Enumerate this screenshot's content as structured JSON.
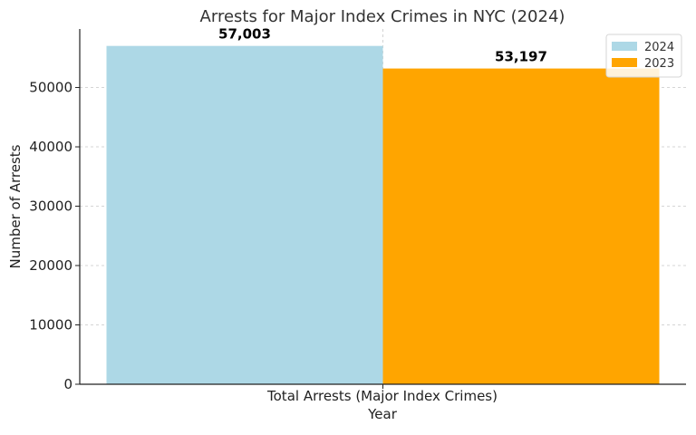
{
  "chart_data": {
    "type": "bar",
    "title": "Arrests for Major Index Crimes in NYC (2024)",
    "xlabel": "Year",
    "ylabel": "Number of Arrests",
    "categories": [
      "Total Arrests (Major Index Crimes)"
    ],
    "series": [
      {
        "name": "2024",
        "values": [
          57003
        ],
        "label": "57,003",
        "color": "#add8e6"
      },
      {
        "name": "2023",
        "values": [
          53197
        ],
        "label": "53,197",
        "color": "#ffa500"
      }
    ],
    "ylim": [
      0,
      59853
    ],
    "yticks": [
      0,
      10000,
      20000,
      30000,
      40000,
      50000
    ],
    "grid": true,
    "legend_position": "top-right"
  }
}
